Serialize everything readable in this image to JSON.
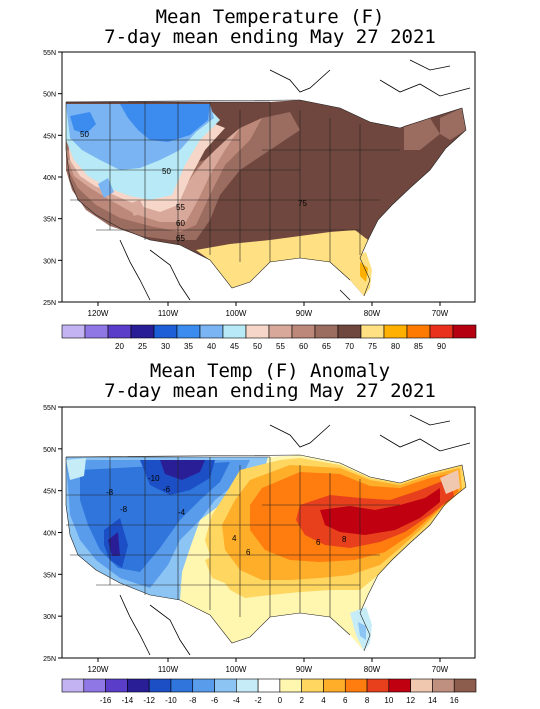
{
  "panels": [
    {
      "title_line1": "Mean Temperature (F)",
      "title_line2": "7-day mean ending May 27 2021",
      "lat_labels": [
        "55N",
        "50N",
        "45N",
        "40N",
        "35N",
        "30N",
        "25N"
      ],
      "lon_labels": [
        "120W",
        "110W",
        "100W",
        "90W",
        "80W",
        "70W"
      ],
      "colorbar": {
        "colors": [
          "#c3b3f3",
          "#8f78e6",
          "#5a3ec9",
          "#2a1e96",
          "#1c5fd6",
          "#3c8cf0",
          "#7ab4f2",
          "#b7eaf6",
          "#f6d6c8",
          "#d8a99a",
          "#bc8879",
          "#9b6c60",
          "#70473e",
          "#ffe082",
          "#ffb000",
          "#ff7a00",
          "#e8301c",
          "#b40010"
        ],
        "labels": [
          "20",
          "25",
          "30",
          "35",
          "40",
          "45",
          "50",
          "55",
          "60",
          "65",
          "70",
          "75",
          "80",
          "85",
          "90"
        ]
      },
      "contour_labels": [
        "50",
        "50",
        "55",
        "60",
        "65",
        "75"
      ]
    },
    {
      "title_line1": "Mean Temp (F) Anomaly",
      "title_line2": "7-day mean ending May 27 2021",
      "lat_labels": [
        "55N",
        "50N",
        "45N",
        "40N",
        "35N",
        "30N",
        "25N"
      ],
      "lon_labels": [
        "120W",
        "110W",
        "100W",
        "90W",
        "80W",
        "70W"
      ],
      "colorbar": {
        "colors": [
          "#c3b3f3",
          "#8f78e6",
          "#5a3ec9",
          "#2a1e96",
          "#1c4fc6",
          "#2f75dc",
          "#5a9cec",
          "#8cc4f4",
          "#c6ecf8",
          "#ffffff",
          "#fff6b0",
          "#ffd660",
          "#ffae2a",
          "#ff7c0e",
          "#e8401c",
          "#c00010",
          "#f0c8b0",
          "#bf8f80",
          "#8c5c4c"
        ],
        "labels": [
          "-16",
          "-14",
          "-12",
          "-10",
          "-8",
          "-6",
          "-4",
          "-2",
          "0",
          "2",
          "4",
          "6",
          "8",
          "10",
          "12",
          "14",
          "16"
        ]
      },
      "contour_labels": [
        "-10",
        "-6",
        "-8",
        "-8",
        "-4",
        "4",
        "6",
        "6",
        "8"
      ]
    }
  ]
}
